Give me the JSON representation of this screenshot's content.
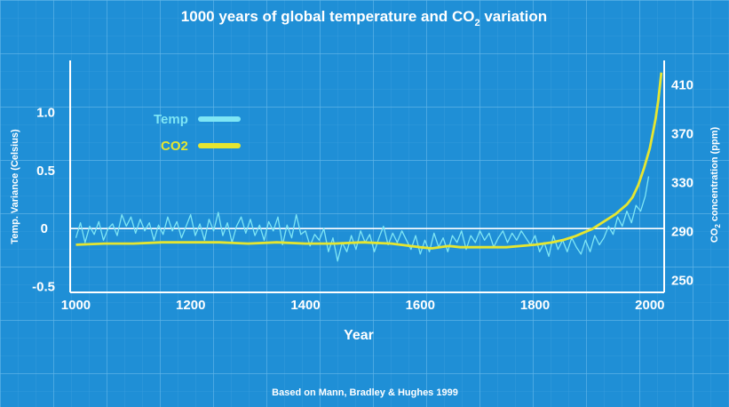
{
  "chart_data": {
    "type": "line",
    "title": "1000 years of global temperature and CO",
    "title_sub": "2",
    "title_tail": " variation",
    "xlabel": "Year",
    "ylabel_left": "Temp. Variance (Celsius)",
    "ylabel_right_main": "CO",
    "ylabel_right_sub": "2",
    "ylabel_right_tail": " concentration (ppm)",
    "source": "Based on Mann, Bradley & Hughes 1999",
    "xlim": [
      990,
      2025
    ],
    "ylim_left": [
      -0.55,
      1.45
    ],
    "ylim_right": [
      240,
      430
    ],
    "x_ticks": [
      1000,
      1200,
      1400,
      1600,
      1800,
      2000
    ],
    "y_left_ticks": [
      {
        "value": 1.0,
        "label": "1.0"
      },
      {
        "value": 0.5,
        "label": "0.5"
      },
      {
        "value": 0,
        "label": "0"
      },
      {
        "value": -0.5,
        "label": "-0.5"
      }
    ],
    "y_right_ticks": [
      410,
      370,
      330,
      290,
      250
    ],
    "grid": true,
    "legend_position": "top-left",
    "series": [
      {
        "name": "Temp",
        "color": "#7ee6f5",
        "axis": "left",
        "x": [
          1000,
          1008,
          1016,
          1024,
          1032,
          1040,
          1048,
          1056,
          1064,
          1072,
          1080,
          1088,
          1096,
          1104,
          1112,
          1120,
          1128,
          1136,
          1144,
          1152,
          1160,
          1168,
          1176,
          1184,
          1192,
          1200,
          1208,
          1216,
          1224,
          1232,
          1240,
          1248,
          1256,
          1264,
          1272,
          1280,
          1288,
          1296,
          1304,
          1312,
          1320,
          1328,
          1336,
          1344,
          1352,
          1360,
          1368,
          1376,
          1384,
          1392,
          1400,
          1408,
          1416,
          1424,
          1432,
          1440,
          1448,
          1456,
          1464,
          1472,
          1480,
          1488,
          1496,
          1504,
          1512,
          1520,
          1528,
          1536,
          1544,
          1552,
          1560,
          1568,
          1576,
          1584,
          1592,
          1600,
          1608,
          1616,
          1624,
          1632,
          1640,
          1648,
          1656,
          1664,
          1672,
          1680,
          1688,
          1696,
          1704,
          1712,
          1720,
          1728,
          1736,
          1744,
          1752,
          1760,
          1768,
          1776,
          1784,
          1792,
          1800,
          1808,
          1816,
          1824,
          1832,
          1840,
          1848,
          1856,
          1864,
          1872,
          1880,
          1888,
          1896,
          1904,
          1912,
          1920,
          1928,
          1936,
          1944,
          1952,
          1960,
          1968,
          1976,
          1984,
          1992,
          1998
        ],
        "values": [
          -0.08,
          0.05,
          -0.12,
          0.02,
          -0.05,
          0.06,
          -0.1,
          0.0,
          0.04,
          -0.06,
          0.12,
          0.02,
          0.1,
          -0.04,
          0.08,
          -0.02,
          0.05,
          -0.1,
          0.03,
          -0.05,
          0.1,
          -0.02,
          0.06,
          -0.08,
          0.02,
          0.12,
          -0.06,
          0.04,
          -0.1,
          0.08,
          -0.02,
          0.14,
          -0.06,
          0.05,
          -0.12,
          0.02,
          0.1,
          -0.04,
          0.08,
          -0.06,
          0.03,
          -0.1,
          0.06,
          -0.02,
          0.1,
          -0.14,
          0.03,
          -0.08,
          0.12,
          -0.05,
          -0.02,
          -0.15,
          -0.05,
          -0.1,
          0.0,
          -0.2,
          -0.08,
          -0.28,
          -0.12,
          -0.2,
          -0.06,
          -0.18,
          -0.02,
          -0.12,
          -0.05,
          -0.2,
          -0.08,
          0.02,
          -0.14,
          -0.04,
          -0.12,
          -0.02,
          -0.1,
          -0.18,
          -0.06,
          -0.22,
          -0.1,
          -0.2,
          -0.04,
          -0.16,
          -0.08,
          -0.2,
          -0.06,
          -0.12,
          -0.02,
          -0.18,
          -0.06,
          -0.12,
          -0.02,
          -0.1,
          -0.04,
          -0.16,
          -0.08,
          -0.02,
          -0.12,
          -0.04,
          -0.1,
          -0.02,
          -0.08,
          -0.14,
          -0.06,
          -0.2,
          -0.12,
          -0.24,
          -0.06,
          -0.18,
          -0.1,
          -0.2,
          -0.08,
          -0.16,
          -0.22,
          -0.1,
          -0.2,
          -0.06,
          -0.14,
          -0.08,
          0.02,
          -0.05,
          0.1,
          0.02,
          0.15,
          0.05,
          0.2,
          0.15,
          0.28,
          0.45
        ],
        "label": "Temp"
      },
      {
        "name": "CO2",
        "color": "#e6e630",
        "axis": "right",
        "x": [
          1000,
          1050,
          1100,
          1150,
          1200,
          1250,
          1300,
          1350,
          1400,
          1450,
          1500,
          1550,
          1600,
          1620,
          1650,
          1670,
          1700,
          1750,
          1800,
          1830,
          1850,
          1870,
          1880,
          1900,
          1920,
          1940,
          1950,
          1960,
          1970,
          1980,
          1990,
          2000,
          2005,
          2010,
          2015,
          2020
        ],
        "values": [
          279,
          280,
          280,
          281,
          281,
          281,
          280,
          281,
          280,
          280,
          281,
          280,
          277,
          276,
          278,
          277,
          277,
          277,
          279,
          281,
          283,
          286,
          288,
          292,
          298,
          304,
          308,
          312,
          318,
          328,
          342,
          358,
          370,
          382,
          398,
          420
        ],
        "label": "CO2"
      }
    ]
  }
}
